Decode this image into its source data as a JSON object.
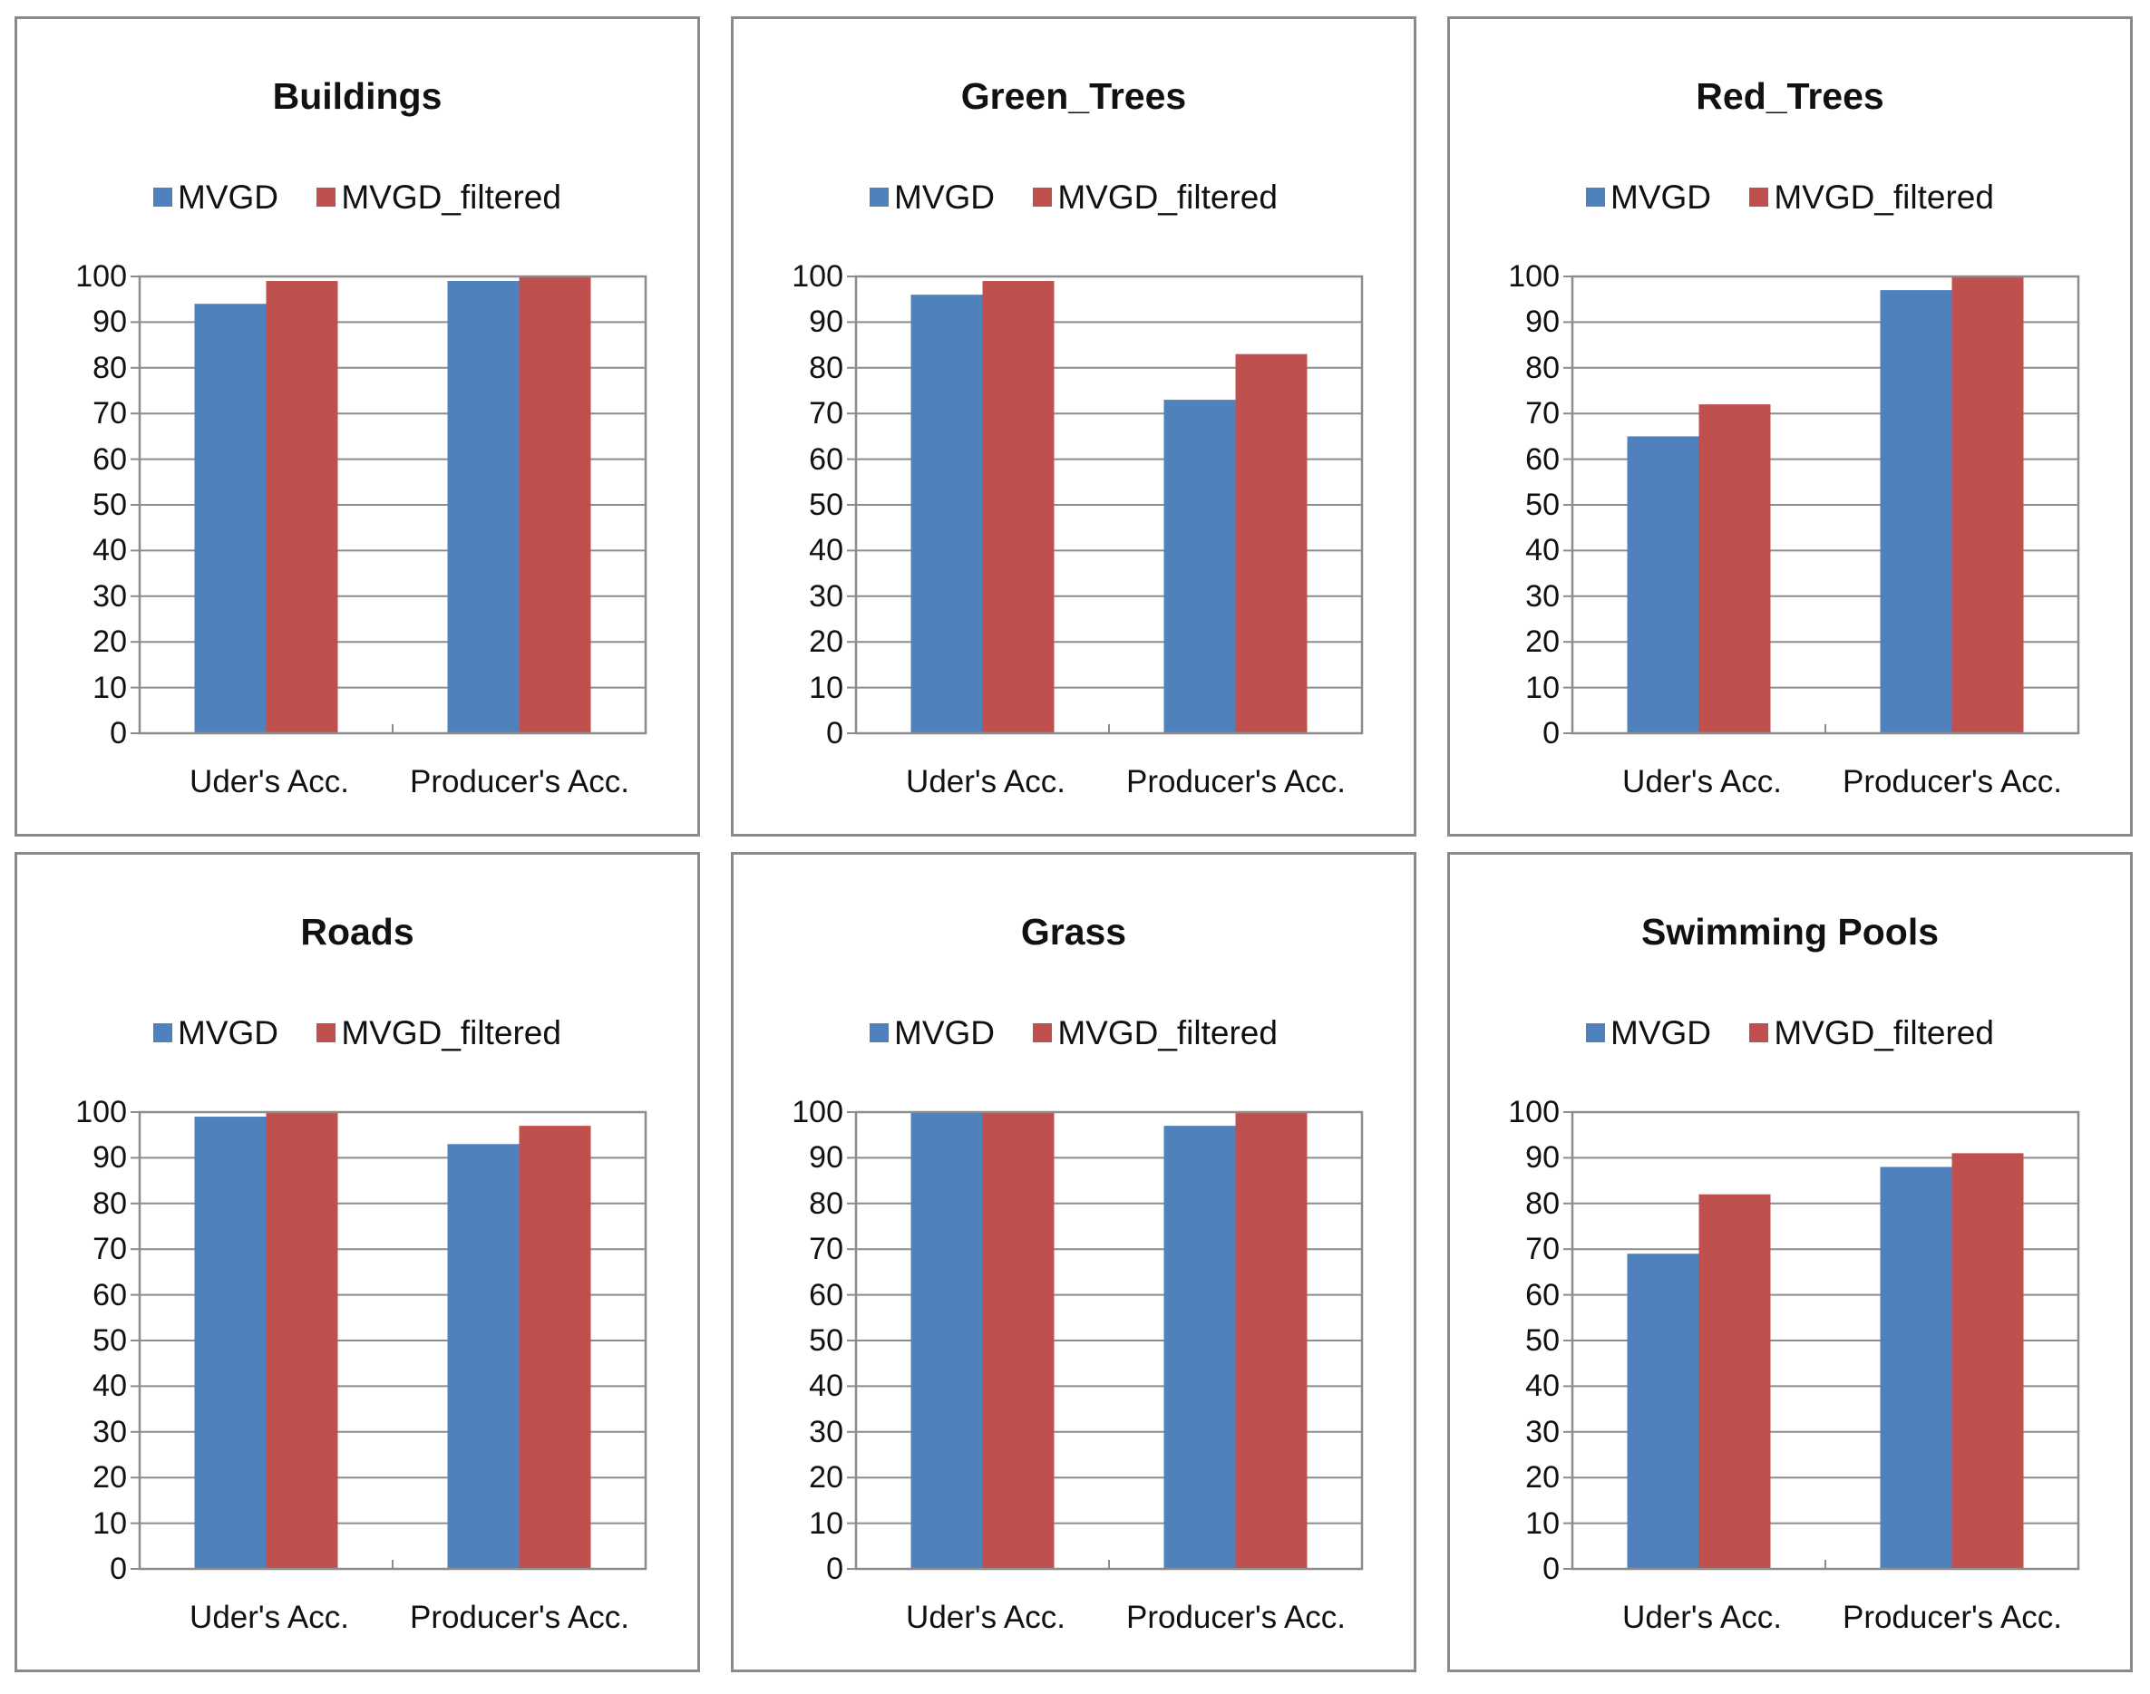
{
  "colors": {
    "mvgd": "#4f81bd",
    "mvgd_filtered": "#c0504d",
    "grid": "#8c8c8c"
  },
  "chart_data": [
    {
      "type": "bar",
      "title": "Buildings",
      "categories": [
        "Uder's Acc.",
        "Producer's Acc."
      ],
      "series": [
        {
          "name": "MVGD",
          "values": [
            94,
            99
          ]
        },
        {
          "name": "MVGD_filtered",
          "values": [
            99,
            100
          ]
        }
      ],
      "yticks": [
        "0",
        "10",
        "20",
        "30",
        "40",
        "50",
        "60",
        "70",
        "80",
        "90",
        "100"
      ],
      "ylim": [
        0,
        100
      ],
      "legend": "top"
    },
    {
      "type": "bar",
      "title": "Green_Trees",
      "categories": [
        "Uder's Acc.",
        "Producer's Acc."
      ],
      "series": [
        {
          "name": "MVGD",
          "values": [
            96,
            73
          ]
        },
        {
          "name": "MVGD_filtered",
          "values": [
            99,
            83
          ]
        }
      ],
      "yticks": [
        "0",
        "10",
        "20",
        "30",
        "40",
        "50",
        "60",
        "70",
        "80",
        "90",
        "100"
      ],
      "ylim": [
        0,
        100
      ],
      "legend": "top"
    },
    {
      "type": "bar",
      "title": "Red_Trees",
      "categories": [
        "Uder's Acc.",
        "Producer's Acc."
      ],
      "series": [
        {
          "name": "MVGD",
          "values": [
            65,
            97
          ]
        },
        {
          "name": "MVGD_filtered",
          "values": [
            72,
            100
          ]
        }
      ],
      "yticks": [
        "0",
        "10",
        "20",
        "30",
        "40",
        "50",
        "60",
        "70",
        "80",
        "90",
        "100"
      ],
      "ylim": [
        0,
        100
      ],
      "legend": "top"
    },
    {
      "type": "bar",
      "title": "Roads",
      "categories": [
        "Uder's Acc.",
        "Producer's Acc."
      ],
      "series": [
        {
          "name": "MVGD",
          "values": [
            99,
            93
          ]
        },
        {
          "name": "MVGD_filtered",
          "values": [
            100,
            97
          ]
        }
      ],
      "yticks": [
        "0",
        "10",
        "20",
        "30",
        "40",
        "50",
        "60",
        "70",
        "80",
        "90",
        "100"
      ],
      "ylim": [
        0,
        100
      ],
      "legend": "top"
    },
    {
      "type": "bar",
      "title": "Grass",
      "categories": [
        "Uder's Acc.",
        "Producer's Acc."
      ],
      "series": [
        {
          "name": "MVGD",
          "values": [
            100,
            97
          ]
        },
        {
          "name": "MVGD_filtered",
          "values": [
            100,
            100
          ]
        }
      ],
      "yticks": [
        "0",
        "10",
        "20",
        "30",
        "40",
        "50",
        "60",
        "70",
        "80",
        "90",
        "100"
      ],
      "ylim": [
        0,
        100
      ],
      "legend": "top"
    },
    {
      "type": "bar",
      "title": "Swimming Pools",
      "categories": [
        "Uder's Acc.",
        "Producer's Acc."
      ],
      "series": [
        {
          "name": "MVGD",
          "values": [
            69,
            88
          ]
        },
        {
          "name": "MVGD_filtered",
          "values": [
            82,
            91
          ]
        }
      ],
      "yticks": [
        "0",
        "10",
        "20",
        "30",
        "40",
        "50",
        "60",
        "70",
        "80",
        "90",
        "100"
      ],
      "ylim": [
        0,
        100
      ],
      "legend": "top"
    }
  ]
}
